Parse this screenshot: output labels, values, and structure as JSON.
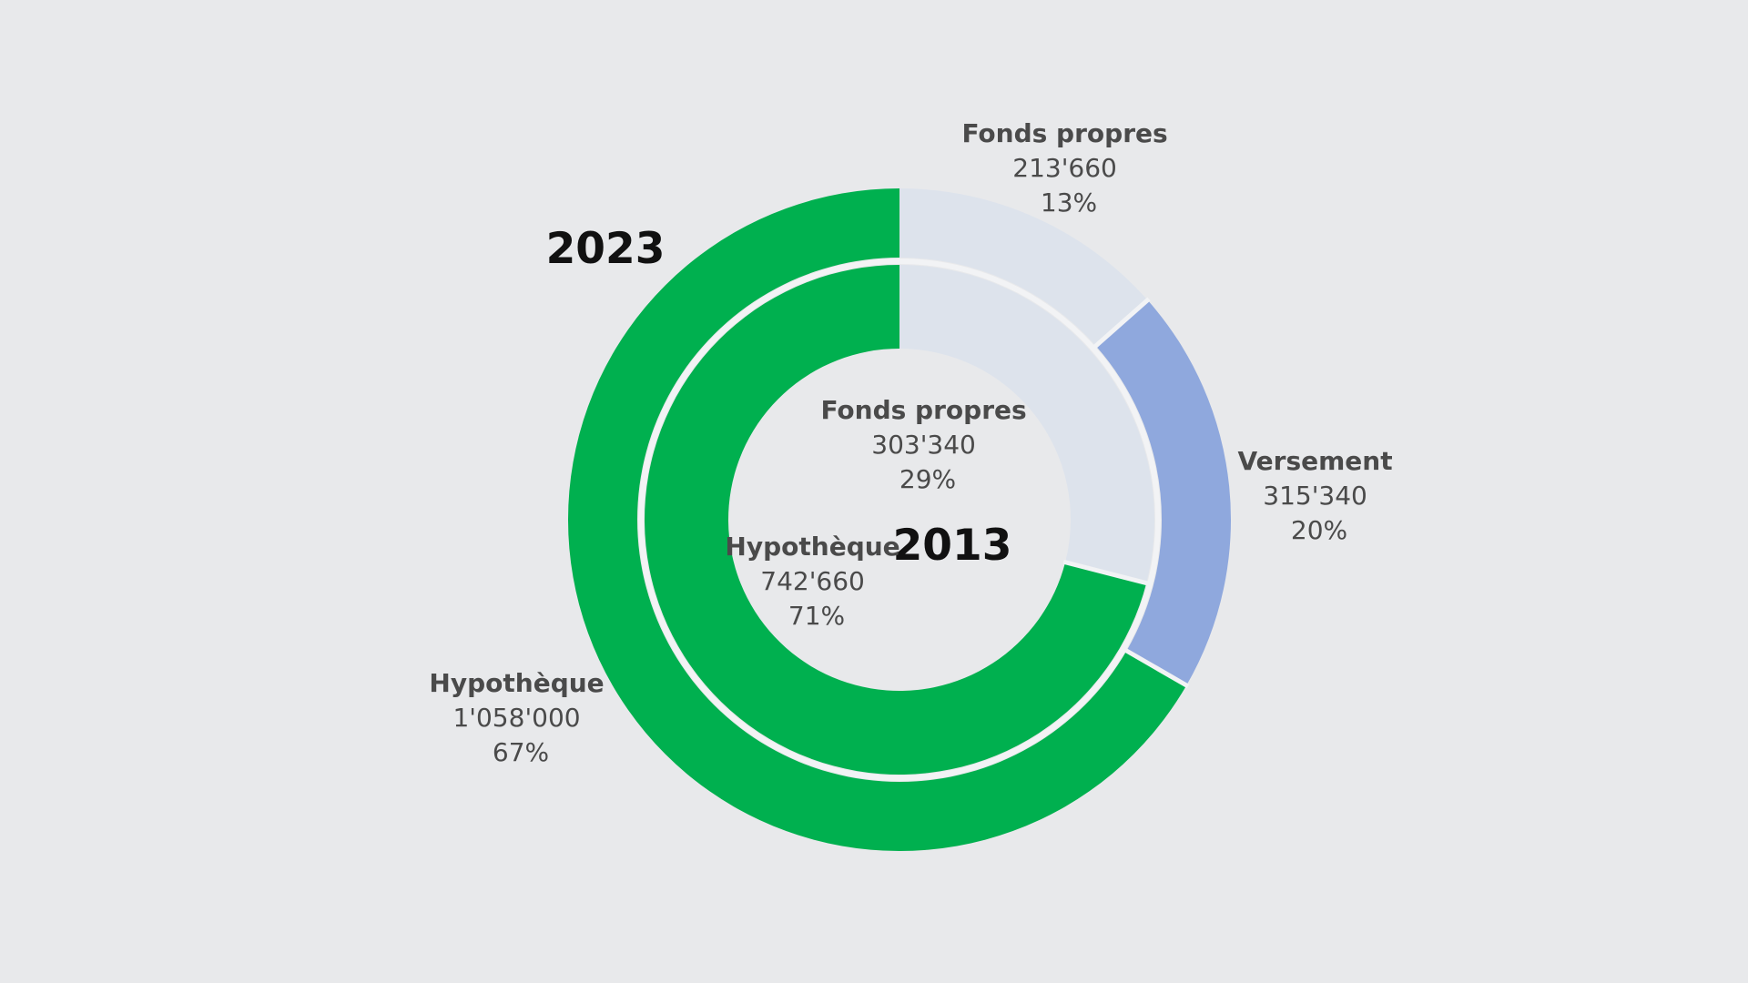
{
  "chart_data": {
    "type": "pie",
    "variant": "nested-donut",
    "rings": [
      {
        "ring": "outer",
        "title": "2023",
        "segments": [
          {
            "name": "Fonds propres",
            "value": 213660,
            "value_label": "213'660",
            "percent_label": "13%",
            "color": "#dde3ec"
          },
          {
            "name": "Versement",
            "value": 315340,
            "value_label": "315'340",
            "percent_label": "20%",
            "color": "#8fa8dd"
          },
          {
            "name": "Hypothèque",
            "value": 1058000,
            "value_label": "1'058'000",
            "percent_label": "67%",
            "color": "#00b04f"
          }
        ]
      },
      {
        "ring": "inner",
        "title": "2013",
        "segments": [
          {
            "name": "Fonds propres",
            "value": 303340,
            "value_label": "303'340",
            "percent_label": "29%",
            "color": "#dde3ec"
          },
          {
            "name": "Hypothèque",
            "value": 742660,
            "value_label": "742'660",
            "percent_label": "71%",
            "color": "#00b04f"
          }
        ]
      }
    ]
  },
  "colors": {
    "background": "#e8e9eb",
    "separator": "#f2f3f5",
    "label_text": "#4a4a4a",
    "title_text": "#111111"
  }
}
